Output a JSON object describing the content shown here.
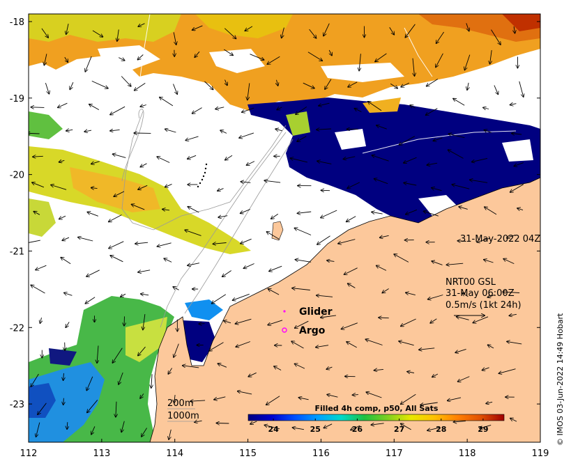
{
  "map": {
    "lon_ticks": [
      "112",
      "113",
      "114",
      "115",
      "116",
      "117",
      "118",
      "119"
    ],
    "lat_ticks": [
      "-18",
      "-19",
      "-20",
      "-21",
      "-22",
      "-23"
    ],
    "lon_range": [
      112,
      119
    ],
    "lat_range": [
      -23.5,
      -17.9
    ],
    "colors": {
      "land": "#fcc89b",
      "cloud": "#ffffff",
      "frame": "#000000",
      "vector": "#000000",
      "bathymetry": "#9a9a9a"
    }
  },
  "annotations": {
    "sst_time": "31-May-2022 04Z",
    "current_product": "NRT00 GSL",
    "current_time": "31-May 06:00Z",
    "current_scale": "0.5m/s (1kt 24h)"
  },
  "legend": {
    "glider": "Glider",
    "argo": "Argo",
    "glider_color": "#ff00ff",
    "argo_color": "#ff00ff"
  },
  "isobaths": {
    "shallow": "200m",
    "deep": "1000m"
  },
  "colorbar": {
    "title": "Filled 4h comp, p50, All Sats",
    "ticks": [
      "24",
      "25",
      "26",
      "27",
      "28",
      "29"
    ],
    "range": [
      23.4,
      29.5
    ],
    "colormap": [
      "#000080",
      "#0000cd",
      "#0050ff",
      "#00a0ff",
      "#00d8c8",
      "#20c040",
      "#80d020",
      "#e8e800",
      "#ffc000",
      "#ff8000",
      "#e05000",
      "#a00000"
    ]
  },
  "credit": "© IMOS 03-Jun-2022 14:49 Hobart"
}
